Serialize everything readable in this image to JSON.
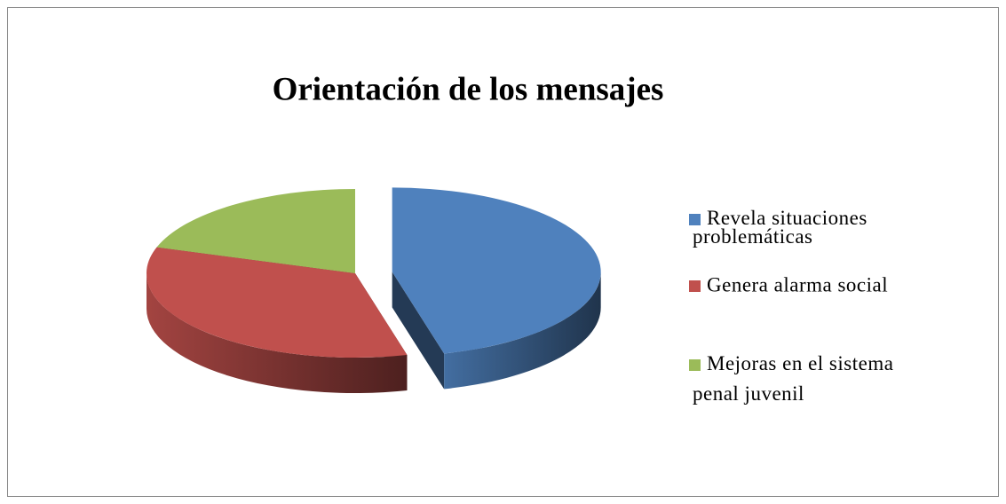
{
  "chart_data": {
    "type": "pie3d",
    "title": "Orientación de los mensajes",
    "categories": [
      "Revela situaciones problemáticas",
      "Genera alarma social",
      "Mejoras en el sistema penal juvenil"
    ],
    "values": [
      46,
      34,
      20
    ],
    "colors": [
      "#4f81bd",
      "#c0504d",
      "#9bbb59"
    ],
    "legend": "right"
  }
}
